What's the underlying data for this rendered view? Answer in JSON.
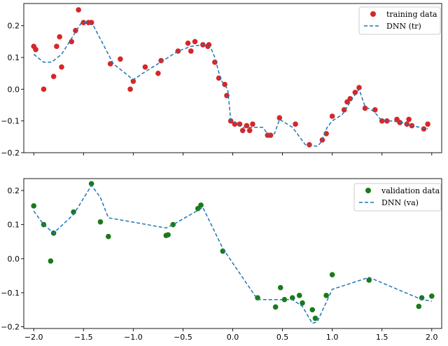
{
  "chart_data": [
    {
      "type": "scatter",
      "xlim": [
        -2.1,
        2.1
      ],
      "ylim": [
        -0.2,
        0.27
      ],
      "x_ticks": [
        -2.0,
        -1.5,
        -1.0,
        -0.5,
        0.0,
        0.5,
        1.0,
        1.5,
        2.0
      ],
      "x_tick_labels_visible": false,
      "y_ticks": [
        -0.2,
        -0.1,
        0.0,
        0.1,
        0.2
      ],
      "y_tick_labels": [
        "−0.2",
        "−0.1",
        "0.0",
        "0.1",
        "0.2"
      ],
      "grid": false,
      "legend": "top-right",
      "series": [
        {
          "name": "training data",
          "kind": "scatter",
          "color": "#d62728",
          "points": [
            [
              -2.0,
              0.135
            ],
            [
              -1.98,
              0.125
            ],
            [
              -1.9,
              0.0
            ],
            [
              -1.8,
              0.04
            ],
            [
              -1.77,
              0.135
            ],
            [
              -1.74,
              0.165
            ],
            [
              -1.72,
              0.07
            ],
            [
              -1.62,
              0.15
            ],
            [
              -1.58,
              0.185
            ],
            [
              -1.55,
              0.25
            ],
            [
              -1.5,
              0.21
            ],
            [
              -1.45,
              0.21
            ],
            [
              -1.42,
              0.21
            ],
            [
              -1.23,
              0.08
            ],
            [
              -1.13,
              0.095
            ],
            [
              -1.03,
              0.0
            ],
            [
              -1.0,
              0.025
            ],
            [
              -0.88,
              0.07
            ],
            [
              -0.75,
              0.05
            ],
            [
              -0.72,
              0.09
            ],
            [
              -0.55,
              0.12
            ],
            [
              -0.45,
              0.145
            ],
            [
              -0.42,
              0.12
            ],
            [
              -0.38,
              0.15
            ],
            [
              -0.3,
              0.14
            ],
            [
              -0.25,
              0.135
            ],
            [
              -0.24,
              0.14
            ],
            [
              -0.18,
              0.085
            ],
            [
              -0.14,
              0.035
            ],
            [
              -0.08,
              0.015
            ],
            [
              -0.06,
              -0.02
            ],
            [
              -0.02,
              -0.1
            ],
            [
              0.02,
              -0.11
            ],
            [
              0.07,
              -0.11
            ],
            [
              0.1,
              -0.13
            ],
            [
              0.14,
              -0.115
            ],
            [
              0.17,
              -0.13
            ],
            [
              0.2,
              -0.11
            ],
            [
              0.35,
              -0.145
            ],
            [
              0.38,
              -0.145
            ],
            [
              0.47,
              -0.09
            ],
            [
              0.63,
              -0.11
            ],
            [
              0.77,
              -0.175
            ],
            [
              0.9,
              -0.16
            ],
            [
              0.94,
              -0.14
            ],
            [
              1.0,
              -0.085
            ],
            [
              1.12,
              -0.065
            ],
            [
              1.15,
              -0.04
            ],
            [
              1.18,
              -0.03
            ],
            [
              1.23,
              -0.01
            ],
            [
              1.27,
              0.005
            ],
            [
              1.33,
              -0.06
            ],
            [
              1.43,
              -0.065
            ],
            [
              1.5,
              -0.1
            ],
            [
              1.55,
              -0.1
            ],
            [
              1.65,
              -0.095
            ],
            [
              1.68,
              -0.105
            ],
            [
              1.75,
              -0.11
            ],
            [
              1.77,
              -0.095
            ],
            [
              1.8,
              -0.115
            ],
            [
              1.92,
              -0.125
            ],
            [
              1.96,
              -0.11
            ]
          ]
        },
        {
          "name": "DNN (tr)",
          "kind": "line",
          "color": "#1f77b4",
          "points": [
            [
              -2.0,
              0.11
            ],
            [
              -1.9,
              0.085
            ],
            [
              -1.82,
              0.085
            ],
            [
              -1.72,
              0.11
            ],
            [
              -1.6,
              0.17
            ],
            [
              -1.52,
              0.21
            ],
            [
              -1.45,
              0.21
            ],
            [
              -1.4,
              0.2
            ],
            [
              -1.3,
              0.14
            ],
            [
              -1.2,
              0.08
            ],
            [
              -1.08,
              0.05
            ],
            [
              -1.0,
              0.03
            ],
            [
              -0.88,
              0.055
            ],
            [
              -0.7,
              0.09
            ],
            [
              -0.55,
              0.12
            ],
            [
              -0.42,
              0.135
            ],
            [
              -0.3,
              0.14
            ],
            [
              -0.22,
              0.13
            ],
            [
              -0.18,
              0.1
            ],
            [
              -0.12,
              0.03
            ],
            [
              -0.05,
              0.0
            ],
            [
              -0.02,
              -0.1
            ],
            [
              0.1,
              -0.12
            ],
            [
              0.2,
              -0.12
            ],
            [
              0.3,
              -0.12
            ],
            [
              0.35,
              -0.14
            ],
            [
              0.42,
              -0.14
            ],
            [
              0.47,
              -0.095
            ],
            [
              0.6,
              -0.12
            ],
            [
              0.73,
              -0.175
            ],
            [
              0.85,
              -0.18
            ],
            [
              0.88,
              -0.17
            ],
            [
              0.95,
              -0.12
            ],
            [
              1.0,
              -0.1
            ],
            [
              1.1,
              -0.08
            ],
            [
              1.2,
              -0.03
            ],
            [
              1.27,
              0.0
            ],
            [
              1.33,
              -0.055
            ],
            [
              1.42,
              -0.07
            ],
            [
              1.5,
              -0.1
            ],
            [
              1.6,
              -0.1
            ],
            [
              1.7,
              -0.105
            ],
            [
              1.8,
              -0.115
            ],
            [
              1.96,
              -0.125
            ]
          ]
        }
      ]
    },
    {
      "type": "scatter",
      "xlim": [
        -2.1,
        2.1
      ],
      "ylim": [
        -0.205,
        0.235
      ],
      "x_ticks": [
        -2.0,
        -1.5,
        -1.0,
        -0.5,
        0.0,
        0.5,
        1.0,
        1.5,
        2.0
      ],
      "x_tick_labels": [
        "−2.0",
        "−1.5",
        "−1.0",
        "−0.5",
        "0.0",
        "0.5",
        "1.0",
        "1.5",
        "2.0"
      ],
      "y_ticks": [
        -0.2,
        -0.1,
        0.0,
        0.1,
        0.2
      ],
      "y_tick_labels": [
        "−0.2",
        "−0.1",
        "0.0",
        "0.1",
        "0.2"
      ],
      "grid": false,
      "legend": "top-right",
      "series": [
        {
          "name": "validation data",
          "kind": "scatter",
          "color": "#1a7a1a",
          "points": [
            [
              -2.0,
              0.155
            ],
            [
              -1.9,
              0.1
            ],
            [
              -1.83,
              -0.007
            ],
            [
              -1.8,
              0.075
            ],
            [
              -1.6,
              0.137
            ],
            [
              -1.42,
              0.22
            ],
            [
              -1.33,
              0.108
            ],
            [
              -1.25,
              0.065
            ],
            [
              -0.67,
              0.068
            ],
            [
              -0.65,
              0.07
            ],
            [
              -0.6,
              0.1
            ],
            [
              -0.35,
              0.147
            ],
            [
              -0.32,
              0.157
            ],
            [
              -0.1,
              0.022
            ],
            [
              0.25,
              -0.115
            ],
            [
              0.43,
              -0.142
            ],
            [
              0.48,
              -0.085
            ],
            [
              0.52,
              -0.12
            ],
            [
              0.6,
              -0.115
            ],
            [
              0.67,
              -0.108
            ],
            [
              0.7,
              -0.13
            ],
            [
              0.8,
              -0.15
            ],
            [
              0.83,
              -0.175
            ],
            [
              0.94,
              -0.108
            ],
            [
              1.0,
              -0.047
            ],
            [
              1.37,
              -0.063
            ],
            [
              1.87,
              -0.14
            ],
            [
              1.9,
              -0.115
            ],
            [
              2.0,
              -0.11
            ]
          ]
        },
        {
          "name": "DNN (va)",
          "kind": "line",
          "color": "#1f77b4",
          "points": [
            [
              -2.0,
              0.14
            ],
            [
              -1.9,
              0.1
            ],
            [
              -1.8,
              0.075
            ],
            [
              -1.6,
              0.13
            ],
            [
              -1.42,
              0.215
            ],
            [
              -1.33,
              0.18
            ],
            [
              -1.25,
              0.12
            ],
            [
              -0.67,
              0.09
            ],
            [
              -0.6,
              0.1
            ],
            [
              -0.3,
              0.15
            ],
            [
              -0.1,
              0.03
            ],
            [
              0.25,
              -0.12
            ],
            [
              0.43,
              -0.12
            ],
            [
              0.6,
              -0.12
            ],
            [
              0.7,
              -0.14
            ],
            [
              0.8,
              -0.19
            ],
            [
              0.85,
              -0.185
            ],
            [
              1.0,
              -0.09
            ],
            [
              1.37,
              -0.055
            ],
            [
              1.9,
              -0.12
            ],
            [
              2.0,
              -0.125
            ]
          ]
        }
      ]
    }
  ]
}
